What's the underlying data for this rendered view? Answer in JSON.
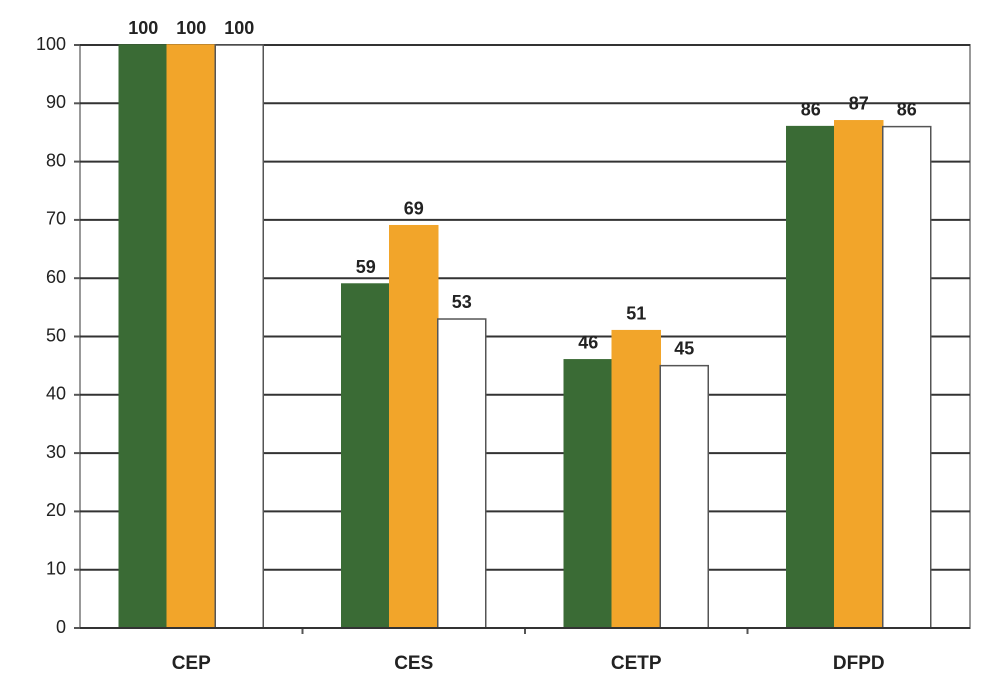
{
  "chart_data": {
    "type": "bar",
    "categories": [
      "CEP",
      "CES",
      "CETP",
      "DFPD"
    ],
    "series": [
      {
        "color": "#3a6b35",
        "values": [
          100,
          59,
          46,
          86
        ]
      },
      {
        "color": "#f2a52a",
        "values": [
          100,
          69,
          51,
          87
        ]
      },
      {
        "color": "#ffffff",
        "values": [
          100,
          53,
          45,
          86
        ]
      }
    ],
    "ylim": [
      0,
      100
    ],
    "yticks": [
      0,
      10,
      20,
      30,
      40,
      50,
      60,
      70,
      80,
      90,
      100
    ],
    "grid": true
  }
}
